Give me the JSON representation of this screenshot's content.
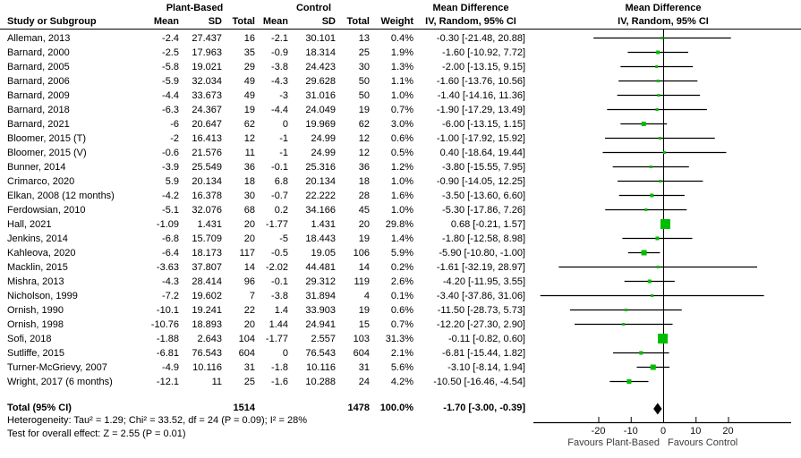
{
  "header": {
    "group_plant": "Plant-Based",
    "group_control": "Control",
    "group_md_text": "Mean Difference",
    "group_md_plot": "Mean Difference",
    "col_study": "Study or Subgroup",
    "col_mean_pb": "Mean",
    "col_sd_pb": "SD",
    "col_total_pb": "Total",
    "col_mean_c": "Mean",
    "col_sd_c": "SD",
    "col_total_c": "Total",
    "col_weight": "Weight",
    "col_ci_text": "IV, Random, 95% CI",
    "col_ci_plot": "IV, Random, 95% CI"
  },
  "chart_data": {
    "type": "forest",
    "effect_measure": "Mean Difference",
    "model": "IV, Random, 95% CI",
    "colors": {
      "square": "#00bd00",
      "line": "#000000",
      "diamond": "#000000"
    },
    "studies": [
      {
        "name": "Alleman, 2013",
        "pb_mean": "-2.4",
        "pb_sd": "27.437",
        "pb_total": "16",
        "c_mean": "-2.1",
        "c_sd": "30.101",
        "c_total": "13",
        "weight": "0.4%",
        "ci_text": "-0.30 [-21.48, 20.88]",
        "md": -0.3,
        "lo": -21.48,
        "hi": 20.88
      },
      {
        "name": "Barnard, 2000",
        "pb_mean": "-2.5",
        "pb_sd": "17.963",
        "pb_total": "35",
        "c_mean": "-0.9",
        "c_sd": "18.314",
        "c_total": "25",
        "weight": "1.9%",
        "ci_text": "-1.60 [-10.92, 7.72]",
        "md": -1.6,
        "lo": -10.92,
        "hi": 7.72
      },
      {
        "name": "Barnard, 2005",
        "pb_mean": "-5.8",
        "pb_sd": "19.021",
        "pb_total": "29",
        "c_mean": "-3.8",
        "c_sd": "24.423",
        "c_total": "30",
        "weight": "1.3%",
        "ci_text": "-2.00 [-13.15, 9.15]",
        "md": -2.0,
        "lo": -13.15,
        "hi": 9.15
      },
      {
        "name": "Barnard, 2006",
        "pb_mean": "-5.9",
        "pb_sd": "32.034",
        "pb_total": "49",
        "c_mean": "-4.3",
        "c_sd": "29.628",
        "c_total": "50",
        "weight": "1.1%",
        "ci_text": "-1.60 [-13.76, 10.56]",
        "md": -1.6,
        "lo": -13.76,
        "hi": 10.56
      },
      {
        "name": "Barnard, 2009",
        "pb_mean": "-4.4",
        "pb_sd": "33.673",
        "pb_total": "49",
        "c_mean": "-3",
        "c_sd": "31.016",
        "c_total": "50",
        "weight": "1.0%",
        "ci_text": "-1.40 [-14.16, 11.36]",
        "md": -1.4,
        "lo": -14.16,
        "hi": 11.36
      },
      {
        "name": "Barnard, 2018",
        "pb_mean": "-6.3",
        "pb_sd": "24.367",
        "pb_total": "19",
        "c_mean": "-4.4",
        "c_sd": "24.049",
        "c_total": "19",
        "weight": "0.7%",
        "ci_text": "-1.90 [-17.29, 13.49]",
        "md": -1.9,
        "lo": -17.29,
        "hi": 13.49
      },
      {
        "name": "Barnard, 2021",
        "pb_mean": "-6",
        "pb_sd": "20.647",
        "pb_total": "62",
        "c_mean": "0",
        "c_sd": "19.969",
        "c_total": "62",
        "weight": "3.0%",
        "ci_text": "-6.00 [-13.15, 1.15]",
        "md": -6.0,
        "lo": -13.15,
        "hi": 1.15
      },
      {
        "name": "Bloomer, 2015 (T)",
        "pb_mean": "-2",
        "pb_sd": "16.413",
        "pb_total": "12",
        "c_mean": "-1",
        "c_sd": "24.99",
        "c_total": "12",
        "weight": "0.6%",
        "ci_text": "-1.00 [-17.92, 15.92]",
        "md": -1.0,
        "lo": -17.92,
        "hi": 15.92
      },
      {
        "name": "Bloomer, 2015 (V)",
        "pb_mean": "-0.6",
        "pb_sd": "21.576",
        "pb_total": "11",
        "c_mean": "-1",
        "c_sd": "24.99",
        "c_total": "12",
        "weight": "0.5%",
        "ci_text": "0.40 [-18.64, 19.44]",
        "md": 0.4,
        "lo": -18.64,
        "hi": 19.44
      },
      {
        "name": "Bunner, 2014",
        "pb_mean": "-3.9",
        "pb_sd": "25.549",
        "pb_total": "36",
        "c_mean": "-0.1",
        "c_sd": "25.316",
        "c_total": "36",
        "weight": "1.2%",
        "ci_text": "-3.80 [-15.55, 7.95]",
        "md": -3.8,
        "lo": -15.55,
        "hi": 7.95
      },
      {
        "name": "Crimarco, 2020",
        "pb_mean": "5.9",
        "pb_sd": "20.134",
        "pb_total": "18",
        "c_mean": "6.8",
        "c_sd": "20.134",
        "c_total": "18",
        "weight": "1.0%",
        "ci_text": "-0.90 [-14.05, 12.25]",
        "md": -0.9,
        "lo": -14.05,
        "hi": 12.25
      },
      {
        "name": "Elkan, 2008 (12 months)",
        "pb_mean": "-4.2",
        "pb_sd": "16.378",
        "pb_total": "30",
        "c_mean": "-0.7",
        "c_sd": "22.222",
        "c_total": "28",
        "weight": "1.6%",
        "ci_text": "-3.50 [-13.60, 6.60]",
        "md": -3.5,
        "lo": -13.6,
        "hi": 6.6
      },
      {
        "name": "Ferdowsian, 2010",
        "pb_mean": "-5.1",
        "pb_sd": "32.076",
        "pb_total": "68",
        "c_mean": "0.2",
        "c_sd": "34.166",
        "c_total": "45",
        "weight": "1.0%",
        "ci_text": "-5.30 [-17.86, 7.26]",
        "md": -5.3,
        "lo": -17.86,
        "hi": 7.26
      },
      {
        "name": "Hall, 2021",
        "pb_mean": "-1.09",
        "pb_sd": "1.431",
        "pb_total": "20",
        "c_mean": "-1.77",
        "c_sd": "1.431",
        "c_total": "20",
        "weight": "29.8%",
        "ci_text": "0.68 [-0.21, 1.57]",
        "md": 0.68,
        "lo": -0.21,
        "hi": 1.57
      },
      {
        "name": "Jenkins, 2014",
        "pb_mean": "-6.8",
        "pb_sd": "15.709",
        "pb_total": "20",
        "c_mean": "-5",
        "c_sd": "18.443",
        "c_total": "19",
        "weight": "1.4%",
        "ci_text": "-1.80 [-12.58, 8.98]",
        "md": -1.8,
        "lo": -12.58,
        "hi": 8.98
      },
      {
        "name": "Kahleova, 2020",
        "pb_mean": "-6.4",
        "pb_sd": "18.173",
        "pb_total": "117",
        "c_mean": "-0.5",
        "c_sd": "19.05",
        "c_total": "106",
        "weight": "5.9%",
        "ci_text": "-5.90 [-10.80, -1.00]",
        "md": -5.9,
        "lo": -10.8,
        "hi": -1.0
      },
      {
        "name": "Macklin, 2015",
        "pb_mean": "-3.63",
        "pb_sd": "37.807",
        "pb_total": "14",
        "c_mean": "-2.02",
        "c_sd": "44.481",
        "c_total": "14",
        "weight": "0.2%",
        "ci_text": "-1.61 [-32.19, 28.97]",
        "md": -1.61,
        "lo": -32.19,
        "hi": 28.97
      },
      {
        "name": "Mishra, 2013",
        "pb_mean": "-4.3",
        "pb_sd": "28.414",
        "pb_total": "96",
        "c_mean": "-0.1",
        "c_sd": "29.312",
        "c_total": "119",
        "weight": "2.6%",
        "ci_text": "-4.20 [-11.95, 3.55]",
        "md": -4.2,
        "lo": -11.95,
        "hi": 3.55
      },
      {
        "name": "Nicholson, 1999",
        "pb_mean": "-7.2",
        "pb_sd": "19.602",
        "pb_total": "7",
        "c_mean": "-3.8",
        "c_sd": "31.894",
        "c_total": "4",
        "weight": "0.1%",
        "ci_text": "-3.40 [-37.86, 31.06]",
        "md": -3.4,
        "lo": -37.86,
        "hi": 31.06
      },
      {
        "name": "Ornish, 1990",
        "pb_mean": "-10.1",
        "pb_sd": "19.241",
        "pb_total": "22",
        "c_mean": "1.4",
        "c_sd": "33.903",
        "c_total": "19",
        "weight": "0.6%",
        "ci_text": "-11.50 [-28.73, 5.73]",
        "md": -11.5,
        "lo": -28.73,
        "hi": 5.73
      },
      {
        "name": "Ornish, 1998",
        "pb_mean": "-10.76",
        "pb_sd": "18.893",
        "pb_total": "20",
        "c_mean": "1.44",
        "c_sd": "24.941",
        "c_total": "15",
        "weight": "0.7%",
        "ci_text": "-12.20 [-27.30, 2.90]",
        "md": -12.2,
        "lo": -27.3,
        "hi": 2.9
      },
      {
        "name": "Sofi, 2018",
        "pb_mean": "-1.88",
        "pb_sd": "2.643",
        "pb_total": "104",
        "c_mean": "-1.77",
        "c_sd": "2.557",
        "c_total": "103",
        "weight": "31.3%",
        "ci_text": "-0.11 [-0.82, 0.60]",
        "md": -0.11,
        "lo": -0.82,
        "hi": 0.6
      },
      {
        "name": "Sutliffe, 2015",
        "pb_mean": "-6.81",
        "pb_sd": "76.543",
        "pb_total": "604",
        "c_mean": "0",
        "c_sd": "76.543",
        "c_total": "604",
        "weight": "2.1%",
        "ci_text": "-6.81 [-15.44, 1.82]",
        "md": -6.81,
        "lo": -15.44,
        "hi": 1.82
      },
      {
        "name": "Turner-McGrievy, 2007",
        "pb_mean": "-4.9",
        "pb_sd": "10.116",
        "pb_total": "31",
        "c_mean": "-1.8",
        "c_sd": "10.116",
        "c_total": "31",
        "weight": "5.6%",
        "ci_text": "-3.10 [-8.14, 1.94]",
        "md": -3.1,
        "lo": -8.14,
        "hi": 1.94
      },
      {
        "name": "Wright, 2017 (6 months)",
        "pb_mean": "-12.1",
        "pb_sd": "11",
        "pb_total": "25",
        "c_mean": "-1.6",
        "c_sd": "10.288",
        "c_total": "24",
        "weight": "4.2%",
        "ci_text": "-10.50 [-16.46, -4.54]",
        "md": -10.5,
        "lo": -16.46,
        "hi": -4.54
      }
    ],
    "total": {
      "label": "Total (95% CI)",
      "pb_total": "1514",
      "c_total": "1478",
      "weight": "100.0%",
      "ci_text": "-1.70 [-3.00, -0.39]",
      "md": -1.7,
      "lo": -3.0,
      "hi": -0.39
    },
    "footnotes": {
      "heterogeneity": "Heterogeneity: Tau² = 1.29; Chi² = 33.52, df = 24 (P = 0.09); I² = 28%",
      "overall_effect": "Test for overall effect: Z = 2.55 (P = 0.01)"
    },
    "axis": {
      "ticks": [
        -20,
        -10,
        0,
        10,
        20
      ],
      "tick_labels": [
        "-20",
        "-10",
        "0",
        "10",
        "20"
      ],
      "range": [
        -40,
        40
      ],
      "favours_left": "Favours Plant-Based",
      "favours_right": "Favours Control"
    }
  }
}
